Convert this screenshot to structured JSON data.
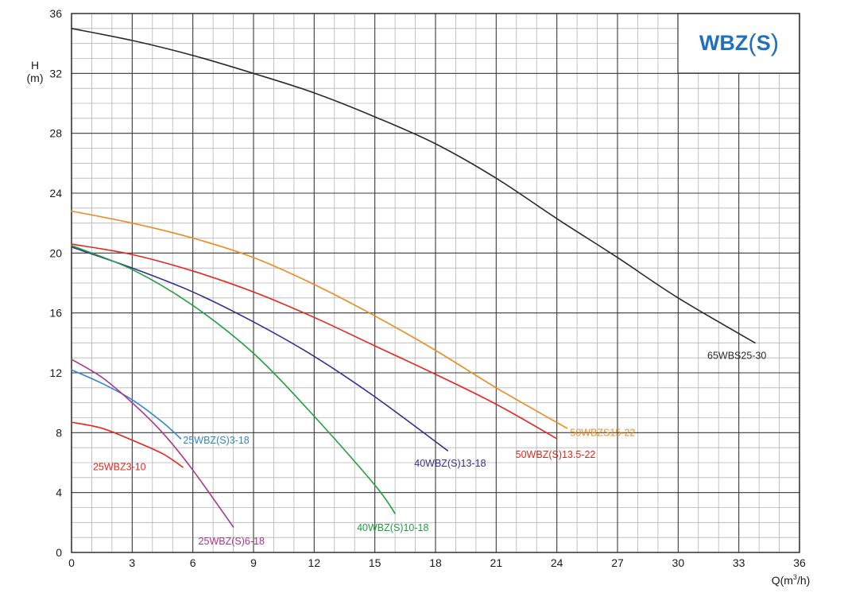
{
  "chart_data": {
    "type": "line",
    "title": "",
    "logo": {
      "prefix": "WBZ",
      "open": "(",
      "s": "S",
      "close": ")"
    },
    "xlabel": {
      "base": "Q(m",
      "sup": "3",
      "tail": "/h)"
    },
    "ylabel": {
      "line1": "H",
      "line2": "(m)"
    },
    "xlim": [
      0,
      36
    ],
    "ylim": [
      0,
      36
    ],
    "xticks": [
      0,
      3,
      6,
      9,
      12,
      15,
      18,
      21,
      24,
      27,
      30,
      33,
      36
    ],
    "yticks": [
      0,
      4,
      8,
      12,
      16,
      20,
      24,
      28,
      32,
      36
    ],
    "grid": true,
    "series": [
      {
        "name": "65WBS25-30",
        "color": "#2a2a2a",
        "x": [
          0,
          3,
          6,
          9,
          12,
          15,
          18,
          21,
          24,
          27,
          30,
          33.8
        ],
        "y": [
          35.0,
          34.2,
          33.2,
          32.0,
          30.7,
          29.1,
          27.3,
          25.0,
          22.3,
          19.7,
          17.0,
          14.0
        ]
      },
      {
        "name": "50WBZS15-22",
        "color": "#f08a1e",
        "x": [
          0,
          3,
          6,
          9,
          12,
          15,
          18,
          21,
          24.5
        ],
        "y": [
          22.8,
          22.0,
          21.0,
          19.7,
          17.9,
          15.8,
          13.5,
          11.0,
          8.3
        ]
      },
      {
        "name": "50WBZ(S)13.5-22",
        "color": "#e8241c",
        "x": [
          0,
          3,
          6,
          9,
          12,
          15,
          18,
          21,
          24
        ],
        "y": [
          20.6,
          19.9,
          18.8,
          17.4,
          15.7,
          13.8,
          11.9,
          9.9,
          7.6
        ]
      },
      {
        "name": "40WBZ(S)13-18",
        "color": "#35308f",
        "x": [
          0,
          3,
          6,
          9,
          12,
          15,
          18.6
        ],
        "y": [
          20.4,
          19.0,
          17.4,
          15.4,
          13.1,
          10.4,
          6.8
        ]
      },
      {
        "name": "40WBZ(S)10-18",
        "color": "#1ea03e",
        "x": [
          0,
          3,
          6,
          9,
          12,
          15,
          16
        ],
        "y": [
          20.5,
          18.9,
          16.5,
          13.3,
          9.1,
          4.5,
          2.6
        ]
      },
      {
        "name": "25WBZ(S)3-18",
        "color": "#2f86cf",
        "x": [
          0,
          1.5,
          3,
          4.5,
          5.4
        ],
        "y": [
          12.2,
          11.3,
          10.2,
          8.7,
          7.6
        ]
      },
      {
        "name": "25WBZ3-10",
        "color": "#e8241c",
        "x": [
          0,
          1.5,
          3,
          4.5,
          5.5
        ],
        "y": [
          8.7,
          8.3,
          7.5,
          6.6,
          5.7
        ]
      },
      {
        "name": "25WBZ(S)6-18",
        "color": "#a8368e",
        "x": [
          0,
          1.5,
          3,
          4.5,
          6,
          8
        ],
        "y": [
          12.9,
          11.7,
          10.0,
          8.0,
          5.5,
          1.7
        ]
      }
    ]
  }
}
